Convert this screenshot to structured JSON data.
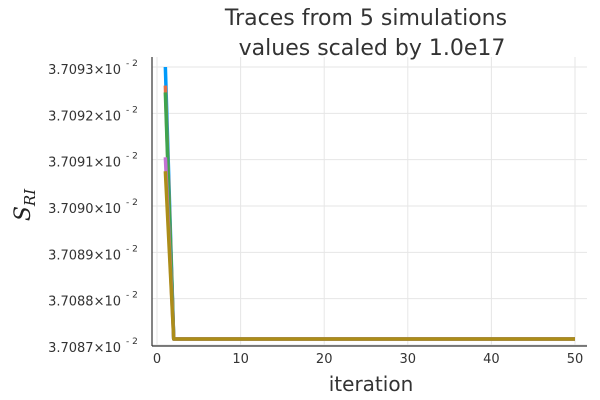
{
  "chart_data": {
    "type": "line",
    "title": "Traces from 5 simulations",
    "subtitle": "values scaled by 1.0e17",
    "xlabel": "iteration",
    "ylabel_main": "S",
    "ylabel_sub": "RI",
    "xlim": [
      0,
      50
    ],
    "ylim": [
      370870,
      370930
    ],
    "x_ticks": [
      "0",
      "10",
      "20",
      "30",
      "40",
      "50"
    ],
    "x_tick_values": [
      0,
      10,
      20,
      30,
      40,
      50
    ],
    "y_tick_values": [
      370870,
      370880,
      370890,
      370900,
      370910,
      370920,
      370930
    ],
    "y_ticks": [
      {
        "mantissa": "3.7087×10",
        "exp": "- 2"
      },
      {
        "mantissa": "3.7088×10",
        "exp": "- 2"
      },
      {
        "mantissa": "3.7089×10",
        "exp": "- 2"
      },
      {
        "mantissa": "3.7090×10",
        "exp": "- 2"
      },
      {
        "mantissa": "3.7091×10",
        "exp": "- 2"
      },
      {
        "mantissa": "3.7092×10",
        "exp": "- 2"
      },
      {
        "mantissa": "3.7093×10",
        "exp": "- 2"
      }
    ],
    "grid": true,
    "legend": "none",
    "series": [
      {
        "color": "#009AFA",
        "x": [
          1,
          2,
          50
        ],
        "y": [
          370930.0,
          370871.3,
          370871.3
        ]
      },
      {
        "color": "#E26F46",
        "x": [
          1,
          2,
          50
        ],
        "y": [
          370926.0,
          370871.3,
          370871.3
        ]
      },
      {
        "color": "#3EA44E",
        "x": [
          1,
          2,
          50
        ],
        "y": [
          370924.5,
          370871.3,
          370871.3
        ]
      },
      {
        "color": "#C271D2",
        "x": [
          1,
          2,
          50
        ],
        "y": [
          370910.5,
          370871.3,
          370871.3
        ]
      },
      {
        "color": "#AC8D18",
        "x": [
          1,
          2,
          50
        ],
        "y": [
          370907.5,
          370871.3,
          370871.3
        ]
      }
    ]
  }
}
